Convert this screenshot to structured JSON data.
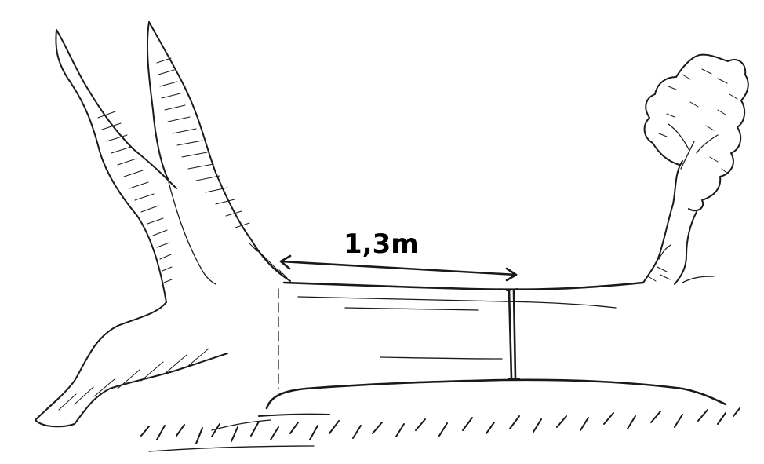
{
  "measurement": {
    "label": "1,3m"
  }
}
